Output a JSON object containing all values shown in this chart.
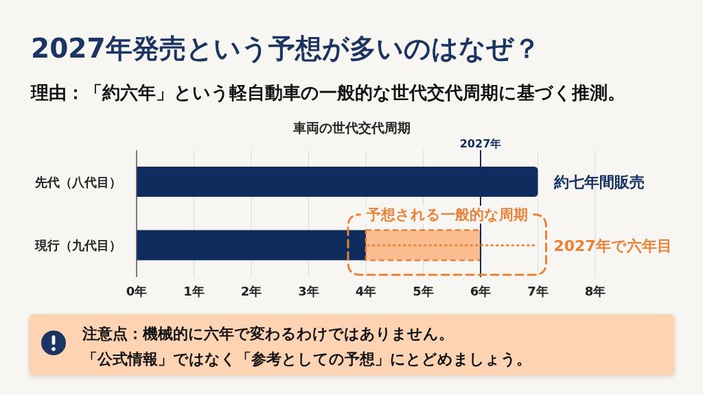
{
  "chart_data": {
    "type": "bar",
    "orientation": "horizontal",
    "stacked": true,
    "title": "2027年発売という予想が多いのはなぜ？",
    "subtitle": "理由：「約六年」という軽自動車の一般的な世代交代周期に基づく推測。",
    "categories": [
      "先代（八代目）",
      "現行（九代目）"
    ],
    "series": [
      {
        "color": "#0e2c5e",
        "values": [
          7,
          4
        ]
      },
      {
        "color": "#fbbd8f",
        "values": [
          null,
          2
        ],
        "line_style": "dashed"
      }
    ],
    "xlim": [
      0,
      8
    ],
    "xticks": [
      {
        "value": 0,
        "label": "0年"
      },
      {
        "value": 1,
        "label": "1年"
      },
      {
        "value": 2,
        "label": "2年"
      },
      {
        "value": 3,
        "label": "3年"
      },
      {
        "value": 4,
        "label": "4年"
      },
      {
        "value": 5,
        "label": "5年"
      },
      {
        "value": 6,
        "label": "6年"
      },
      {
        "value": 7,
        "label": "7年"
      },
      {
        "value": 8,
        "label": "8年"
      }
    ],
    "grid": "x",
    "ref_lines": [
      {
        "axis": "x",
        "value": 6,
        "label": "2027年",
        "color": "#0e2c5e"
      }
    ],
    "annotations": [
      "車両の世代交代周期",
      {
        "text": "約七年間販売",
        "x": 7,
        "y": "先代（八代目）"
      },
      "予想される一般的な周期",
      {
        "text": "2027年で六年目",
        "x": 4,
        "y": "現行（九代目）"
      },
      "注意点：機械的に六年で変わるわけではありません。",
      "「公式情報」ではなく「参考としての予想」にとどめましょう。"
    ]
  }
}
